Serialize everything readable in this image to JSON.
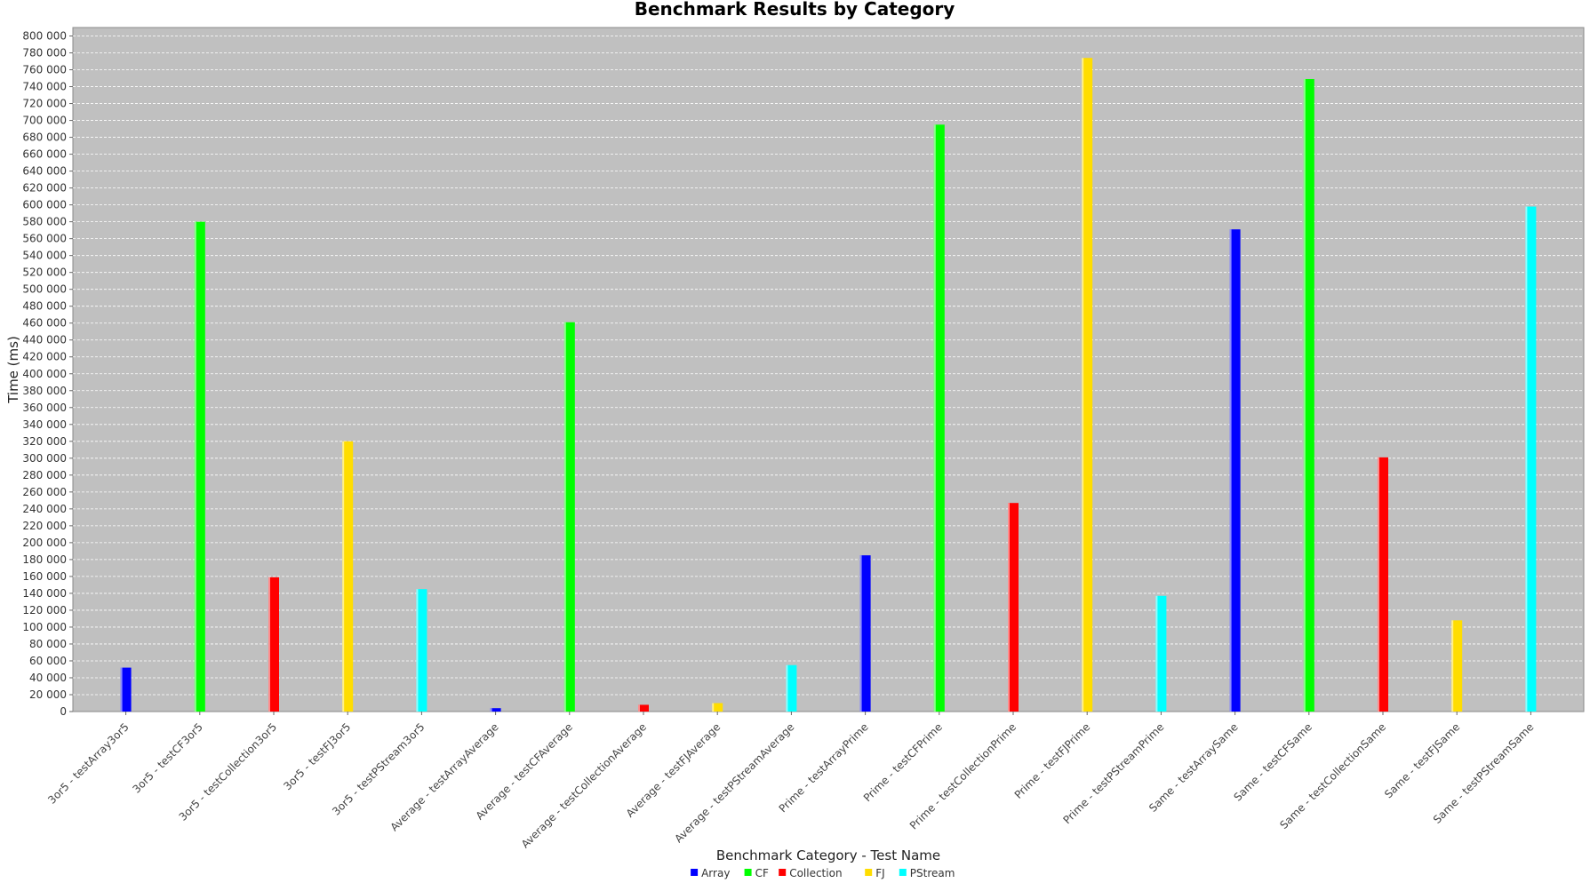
{
  "chart_data": {
    "type": "bar",
    "title": "Benchmark Results by Category",
    "xlabel": "Benchmark Category - Test Name",
    "ylabel": "Time (ms)",
    "ylim": [
      0,
      810000
    ],
    "ytick_step": 20000,
    "grid": true,
    "legend_position": "bottom",
    "colors": {
      "Array": "#0000ff",
      "CF": "#00ff00",
      "Collection": "#ff0000",
      "FJ": "#ffdd00",
      "PStream": "#00ffff"
    },
    "legend": [
      "Array",
      "CF",
      "Collection",
      "FJ",
      "PStream"
    ],
    "bars": [
      {
        "category": "3or5 - testArray3or5",
        "series": "Array",
        "value": 52000
      },
      {
        "category": "3or5 - testCF3or5",
        "series": "CF",
        "value": 580000
      },
      {
        "category": "3or5 - testCollection3or5",
        "series": "Collection",
        "value": 159000
      },
      {
        "category": "3or5 - testFJ3or5",
        "series": "FJ",
        "value": 320000
      },
      {
        "category": "3or5 - testPStream3or5",
        "series": "PStream",
        "value": 145000
      },
      {
        "category": "Average - testArrayAverage",
        "series": "Array",
        "value": 4000
      },
      {
        "category": "Average - testCFAverage",
        "series": "CF",
        "value": 461000
      },
      {
        "category": "Average - testCollectionAverage",
        "series": "Collection",
        "value": 8000
      },
      {
        "category": "Average - testFJAverage",
        "series": "FJ",
        "value": 10000
      },
      {
        "category": "Average - testPStreamAverage",
        "series": "PStream",
        "value": 55000
      },
      {
        "category": "Prime - testArrayPrime",
        "series": "Array",
        "value": 185000
      },
      {
        "category": "Prime - testCFPrime",
        "series": "CF",
        "value": 695000
      },
      {
        "category": "Prime - testCollectionPrime",
        "series": "Collection",
        "value": 247000
      },
      {
        "category": "Prime - testFJPrime",
        "series": "FJ",
        "value": 774000
      },
      {
        "category": "Prime - testPStreamPrime",
        "series": "PStream",
        "value": 137000
      },
      {
        "category": "Same - testArraySame",
        "series": "Array",
        "value": 571000
      },
      {
        "category": "Same - testCFSame",
        "series": "CF",
        "value": 749000
      },
      {
        "category": "Same - testCollectionSame",
        "series": "Collection",
        "value": 301000
      },
      {
        "category": "Same - testFJSame",
        "series": "FJ",
        "value": 108000
      },
      {
        "category": "Same - testPStreamSame",
        "series": "PStream",
        "value": 598000
      }
    ]
  }
}
